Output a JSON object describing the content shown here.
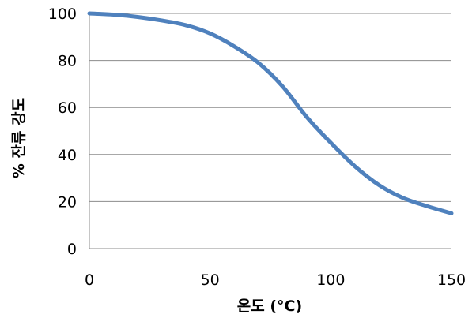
{
  "chart_data": {
    "type": "line",
    "title": "",
    "xlabel": "온도 (°C)",
    "ylabel": "% 잔류 강도",
    "xlim": [
      0,
      150
    ],
    "ylim": [
      0,
      100
    ],
    "x_ticks": [
      0,
      50,
      100,
      150
    ],
    "y_ticks": [
      0,
      20,
      40,
      60,
      80,
      100
    ],
    "grid": "horizontal",
    "series": [
      {
        "color": "#4f81bd",
        "x": [
          0,
          10,
          20,
          30,
          40,
          50,
          60,
          70,
          80,
          90,
          100,
          110,
          120,
          130,
          140,
          150
        ],
        "y": [
          100,
          99.5,
          98.5,
          97,
          95,
          91.5,
          86,
          79,
          69,
          56,
          45,
          35,
          27,
          21.5,
          18,
          15
        ]
      }
    ]
  }
}
